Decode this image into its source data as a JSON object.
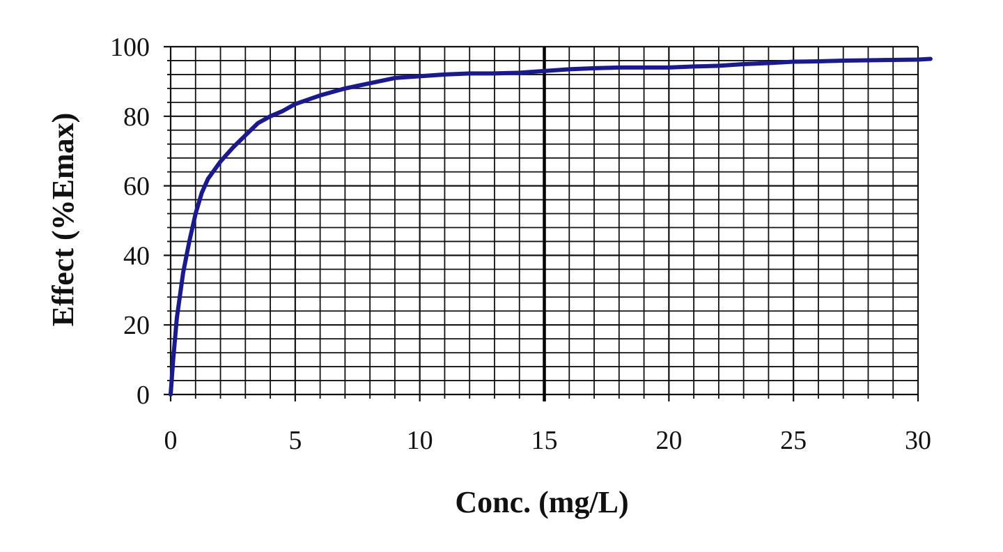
{
  "chart_data": {
    "type": "line",
    "title": "",
    "xlabel": "Conc. (mg/L)",
    "ylabel": "Effect  (%Emax)",
    "xlim": [
      0,
      30
    ],
    "ylim": [
      0,
      100
    ],
    "x_ticks": [
      0,
      5,
      10,
      15,
      20,
      25,
      30
    ],
    "y_ticks": [
      0,
      20,
      40,
      60,
      80,
      100
    ],
    "x_tick_labels": [
      "0",
      "5",
      "10",
      "15",
      "20",
      "25",
      "30"
    ],
    "y_tick_labels": [
      "0",
      "20",
      "40",
      "60",
      "80",
      "100"
    ],
    "grid": true,
    "grid_minor_x_step": 1,
    "grid_minor_y_step": 4,
    "reference_line_x": 15,
    "line_color": "#1a1a8c",
    "series": [
      {
        "x": [
          0,
          0.1,
          0.25,
          0.5,
          0.75,
          1,
          1.25,
          1.5,
          2,
          2.5,
          3,
          3.5,
          4,
          4.5,
          5,
          6,
          7,
          8,
          9,
          10,
          11,
          12,
          13,
          14,
          15,
          16,
          17,
          18,
          19,
          20,
          21,
          22,
          23,
          24,
          25,
          26,
          27,
          28,
          29,
          30,
          30.5
        ],
        "y": [
          0,
          10,
          22,
          35,
          44,
          52,
          58,
          62,
          67,
          71,
          74.5,
          78,
          80,
          81.5,
          83.5,
          86,
          88,
          89.5,
          91,
          91.5,
          92,
          92.3,
          92.3,
          92.5,
          93,
          93.5,
          93.8,
          94,
          94,
          94,
          94.3,
          94.5,
          95,
          95.3,
          95.7,
          95.8,
          96,
          96.1,
          96.2,
          96.3,
          96.5
        ]
      }
    ]
  }
}
